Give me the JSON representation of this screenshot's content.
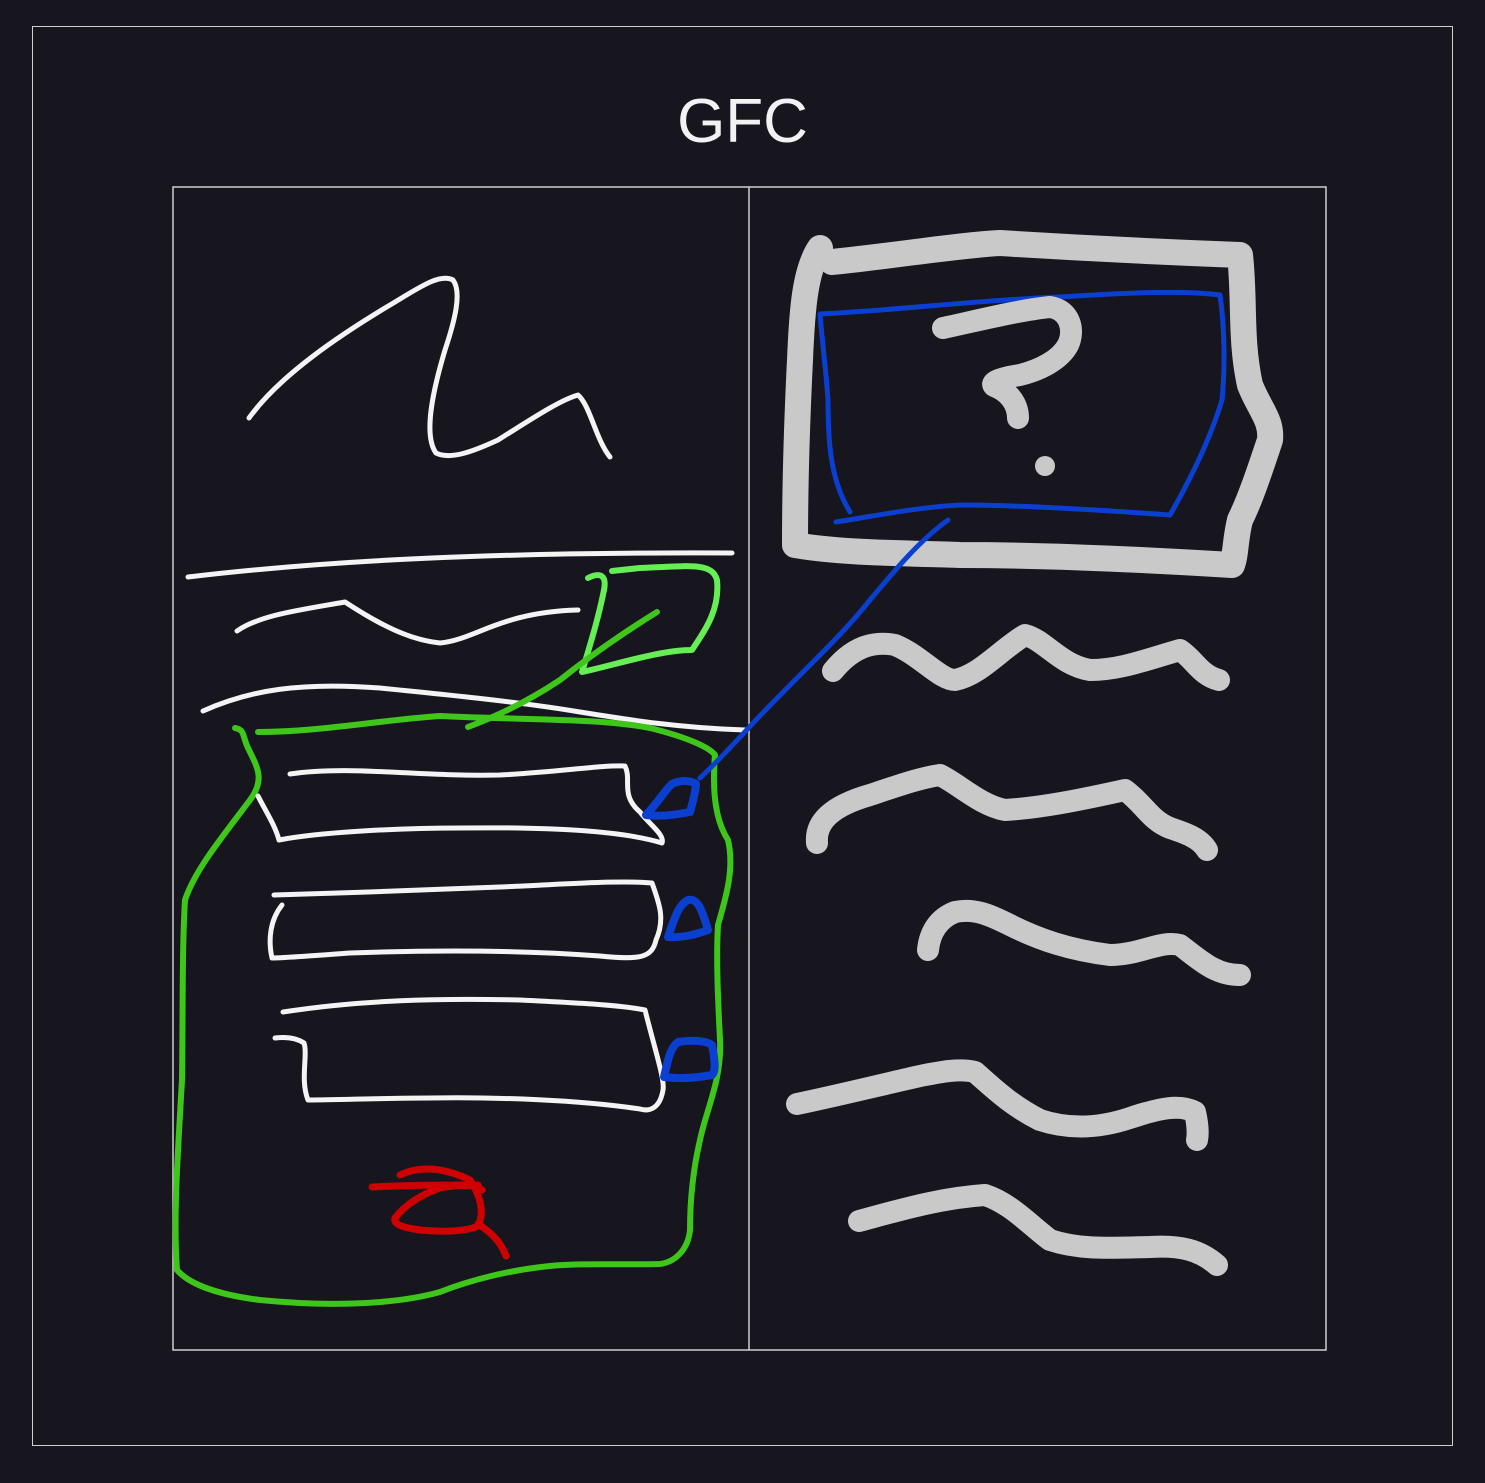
{
  "diagram": {
    "title": "GFC",
    "colors": {
      "background": "#17151e",
      "frame": "#cfcfcf",
      "title_text": "#f2f2f2",
      "sketch_white": "#f4f4f4",
      "sketch_gray": "#c9c9c9",
      "sketch_blue": "#0a3fd0",
      "sketch_green": "#3ec61a",
      "sketch_light_green": "#66ee55",
      "sketch_red": "#d10000"
    },
    "left_panel": {
      "icons": [
        "scribble-heading-icon",
        "wavy-text-line-icon",
        "input-field-icon",
        "submit-button-icon"
      ]
    },
    "right_panel": {
      "icons": [
        "image-placeholder-icon",
        "question-mark-icon",
        "wavy-text-line-icon"
      ]
    }
  }
}
